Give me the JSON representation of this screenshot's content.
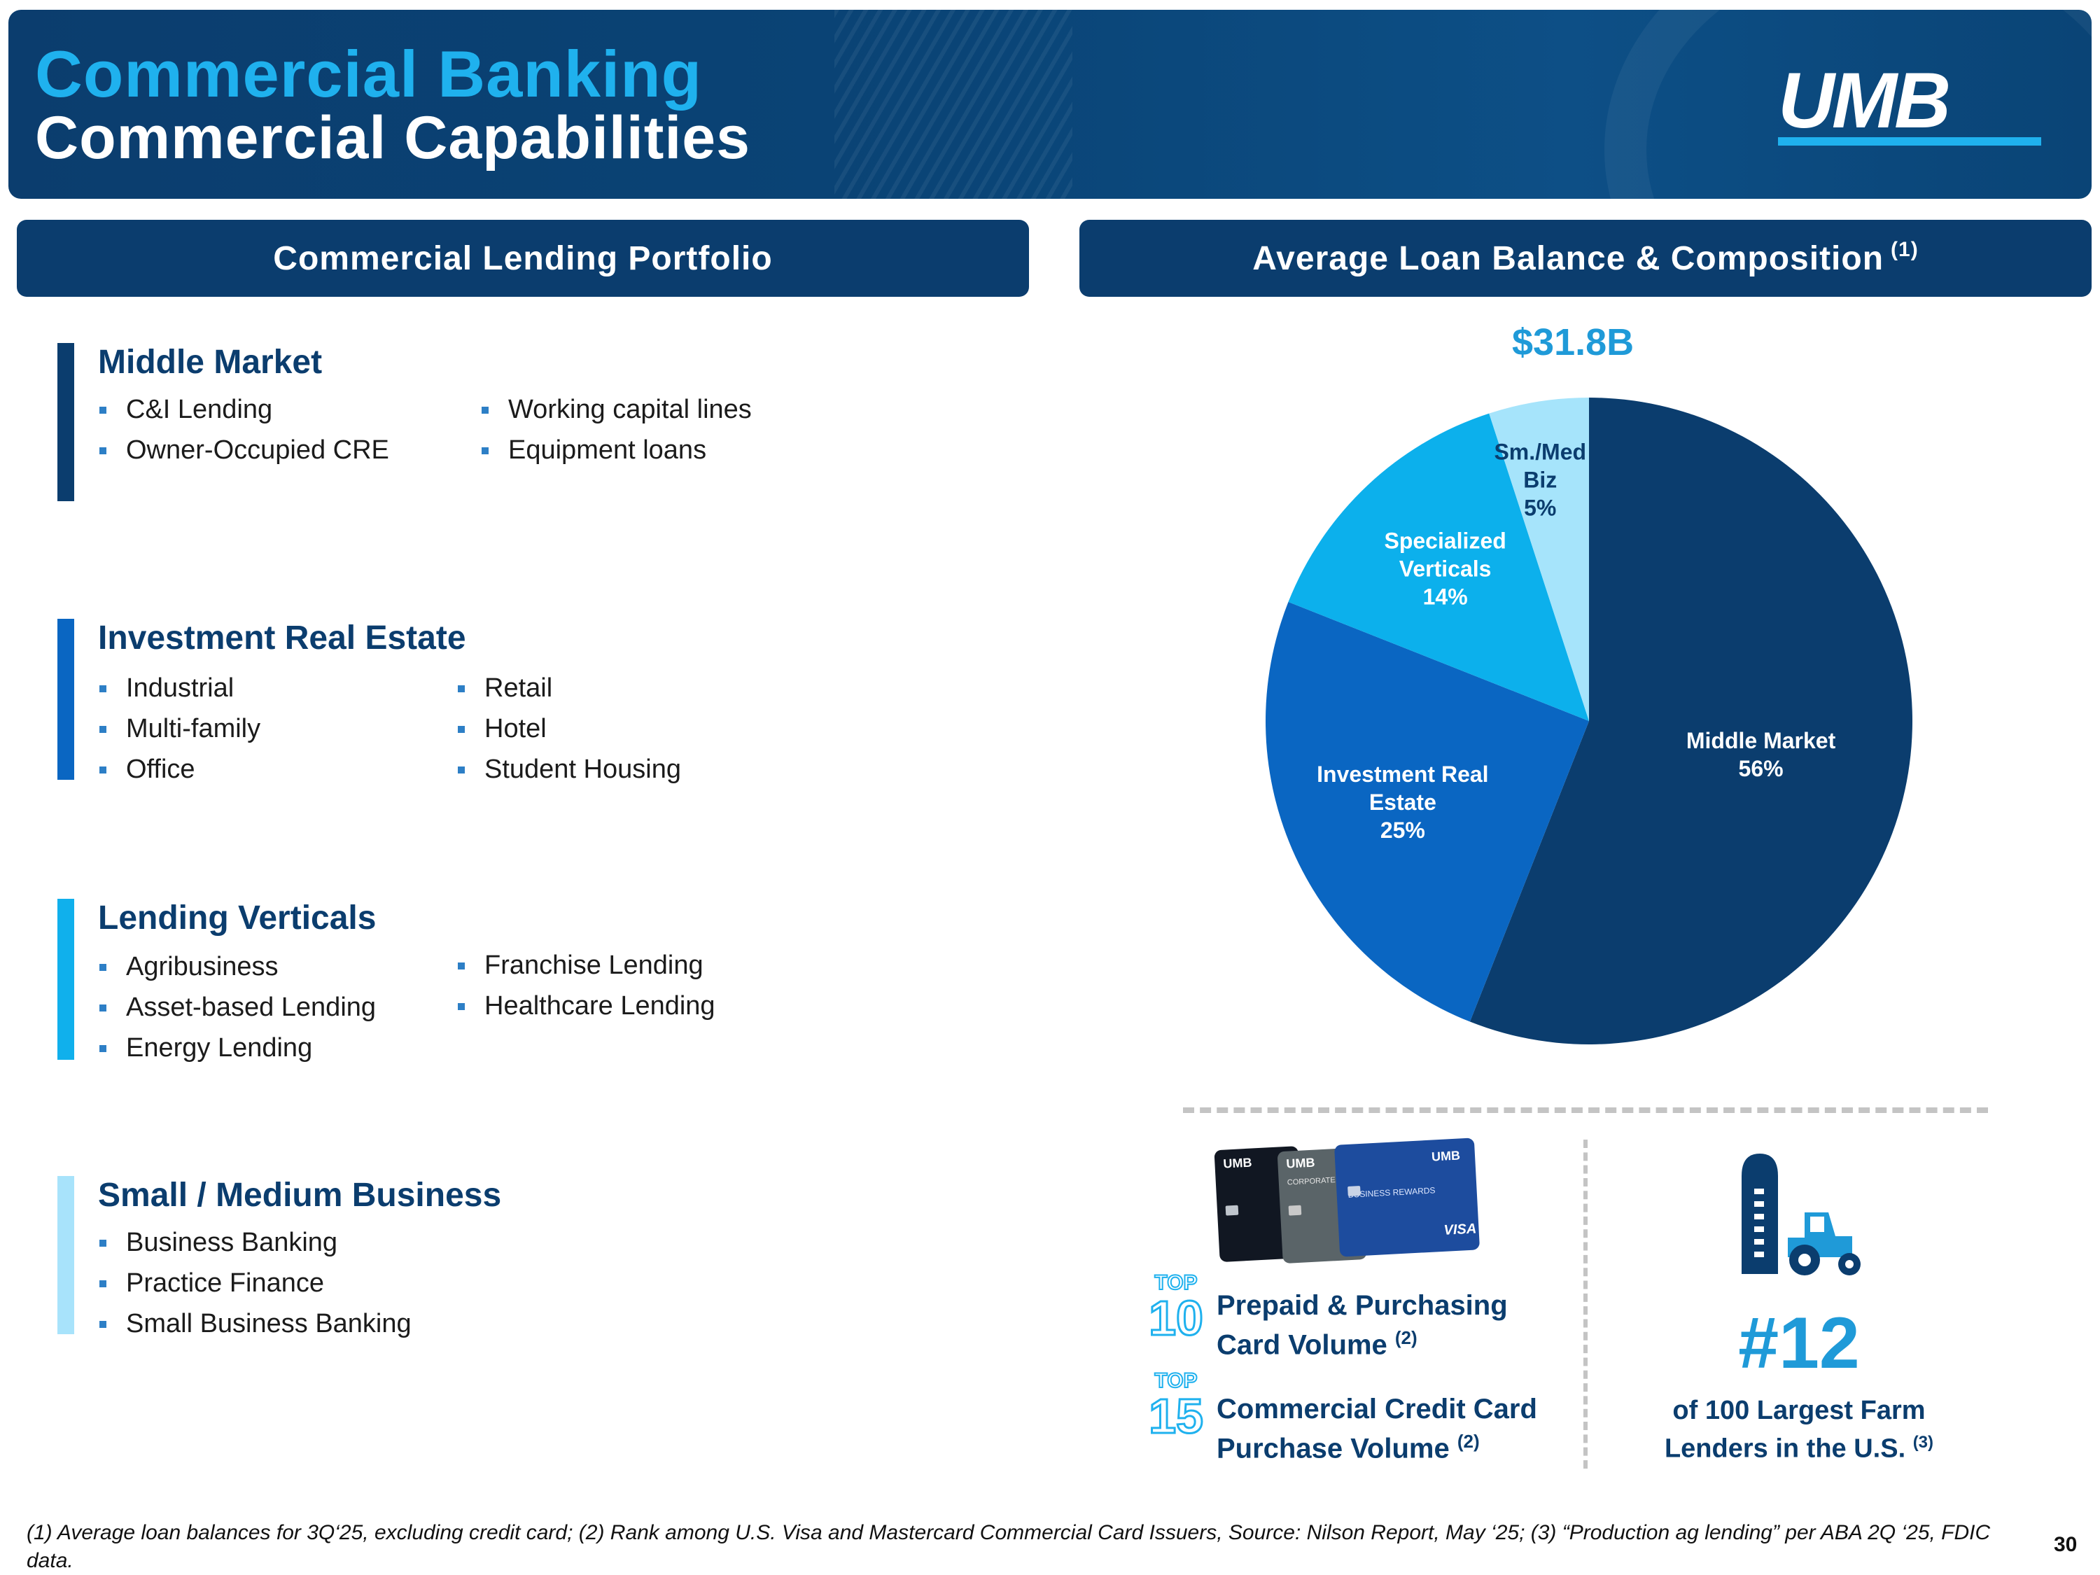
{
  "header": {
    "title_line1": "Commercial Banking",
    "title_line2": "Commercial Capabilities",
    "logo_text": "UMB"
  },
  "left_section": {
    "heading": "Commercial Lending Portfolio",
    "categories": [
      {
        "name": "Middle Market",
        "bar_color": "#0b3d6e",
        "col1": [
          "C&I Lending",
          "Owner-Occupied CRE"
        ],
        "col2": [
          "Working capital lines",
          "Equipment loans"
        ]
      },
      {
        "name": "Investment Real Estate",
        "bar_color": "#0a66c2",
        "col1": [
          "Industrial",
          "Multi-family",
          "Office"
        ],
        "col2": [
          "Retail",
          "Hotel",
          "Student Housing"
        ]
      },
      {
        "name": "Lending Verticals",
        "bar_color": "#10b0ec",
        "col1": [
          "Agribusiness",
          "Asset-based Lending",
          "Energy Lending"
        ],
        "col2": [
          "Franchise Lending",
          "Healthcare Lending"
        ]
      },
      {
        "name": "Small / Medium Business",
        "bar_color": "#a8e3fb",
        "col1": [
          "Business Banking",
          "Practice Finance",
          "Small Business Banking"
        ],
        "col2": []
      }
    ]
  },
  "right_section": {
    "heading": "Average Loan Balance & Composition",
    "heading_footnote": "(1)",
    "total": "$31.8B"
  },
  "chart_data": {
    "type": "pie",
    "title": "$31.8B",
    "slices": [
      {
        "label": "Middle Market",
        "label_lines": [
          "Middle Market"
        ],
        "value": 56,
        "value_label": "56%",
        "color": "#0b3d6e"
      },
      {
        "label": "Investment Real Estate",
        "label_lines": [
          "Investment Real",
          "Estate"
        ],
        "value": 25,
        "value_label": "25%",
        "color": "#0a66c2"
      },
      {
        "label": "Specialized Verticals",
        "label_lines": [
          "Specialized",
          "Verticals"
        ],
        "value": 14,
        "value_label": "14%",
        "color": "#0cb0ec"
      },
      {
        "label": "Sm./Med Biz",
        "label_lines": [
          "Sm./Med",
          "Biz"
        ],
        "value": 5,
        "value_label": "5%",
        "color": "#a6e4fb"
      }
    ]
  },
  "stats": {
    "prepaid": {
      "top_word": "TOP",
      "rank": "10",
      "line1": "Prepaid & Purchasing",
      "line2": "Card Volume",
      "footnote": "(2)"
    },
    "credit": {
      "top_word": "TOP",
      "rank": "15",
      "line1": "Commercial Credit Card",
      "line2": "Purchase Volume",
      "footnote": "(2)"
    },
    "farm": {
      "rank": "#12",
      "line1": "of 100 Largest Farm",
      "line2": "Lenders in the U.S.",
      "footnote": "(3)"
    },
    "card_brands": {
      "bank": "UMB",
      "corporate": "CORPORATE",
      "business": "BUSINESS REWARDS",
      "network": "VISA"
    }
  },
  "footer": {
    "footnote": "(1) Average loan balances for 3Q‘25, excluding credit card; (2) Rank among U.S. Visa and Mastercard Commercial Card Issuers, Source: Nilson Report, May ‘25; (3) “Production ag lending” per ABA 2Q ‘25, FDIC data.",
    "page_number": "30"
  }
}
